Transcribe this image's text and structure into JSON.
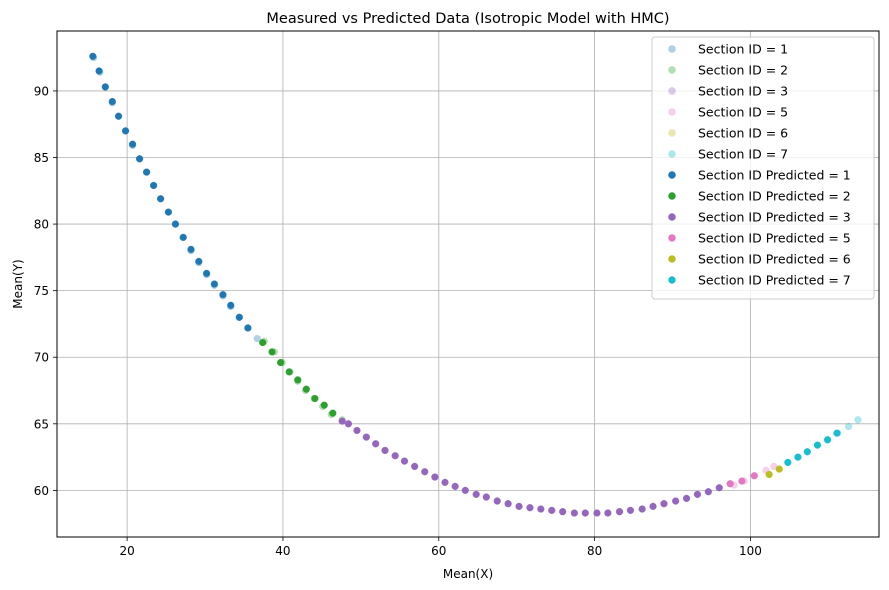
{
  "chart_data": {
    "type": "scatter",
    "title": "Measured vs Predicted Data (Isotropic Model with HMC)",
    "xlabel": "Mean(X)",
    "ylabel": "Mean(Y)",
    "xlim": [
      11,
      116.5
    ],
    "ylim": [
      56.5,
      94.5
    ],
    "xticks": [
      20,
      40,
      60,
      80,
      100
    ],
    "yticks": [
      60,
      65,
      70,
      75,
      80,
      85,
      90
    ],
    "grid": true,
    "legend_position": "top-right",
    "series": [
      {
        "name": "Section ID = 1",
        "color": "#1f77b4",
        "alpha": 0.35,
        "points": [
          [
            15.7,
            92.5
          ],
          [
            16.5,
            91.4
          ],
          [
            17.2,
            90.3
          ],
          [
            18.1,
            89.1
          ],
          [
            18.9,
            88.1
          ],
          [
            19.8,
            87.0
          ],
          [
            20.7,
            85.9
          ],
          [
            21.6,
            84.9
          ],
          [
            22.5,
            83.9
          ],
          [
            23.4,
            82.9
          ],
          [
            24.3,
            81.9
          ],
          [
            25.3,
            80.9
          ],
          [
            26.2,
            80.0
          ],
          [
            27.2,
            79.0
          ],
          [
            28.2,
            78.0
          ],
          [
            29.2,
            77.1
          ],
          [
            30.2,
            76.2
          ],
          [
            31.2,
            75.4
          ],
          [
            32.3,
            74.6
          ],
          [
            33.3,
            73.8
          ],
          [
            34.4,
            73.0
          ],
          [
            35.5,
            72.2
          ],
          [
            36.7,
            71.4
          ]
        ]
      },
      {
        "name": "Section ID = 2",
        "color": "#2ca02c",
        "alpha": 0.35,
        "points": [
          [
            37.6,
            71.2
          ],
          [
            38.9,
            70.4
          ],
          [
            39.9,
            69.6
          ],
          [
            40.9,
            68.9
          ],
          [
            41.9,
            68.2
          ],
          [
            42.9,
            67.5
          ],
          [
            44.0,
            66.9
          ],
          [
            45.1,
            66.3
          ],
          [
            46.2,
            65.7
          ],
          [
            47.6,
            65.3
          ]
        ]
      },
      {
        "name": "Section ID = 3",
        "color": "#9467bd",
        "alpha": 0.35,
        "points": [
          [
            48.4,
            65.0
          ],
          [
            49.5,
            64.5
          ],
          [
            50.7,
            64.0
          ],
          [
            51.9,
            63.5
          ],
          [
            53.1,
            63.0
          ],
          [
            54.4,
            62.6
          ],
          [
            55.6,
            62.2
          ],
          [
            56.9,
            61.8
          ],
          [
            58.2,
            61.4
          ],
          [
            59.5,
            61.0
          ],
          [
            60.8,
            60.6
          ],
          [
            62.1,
            60.3
          ],
          [
            63.4,
            60.0
          ],
          [
            64.8,
            59.7
          ],
          [
            66.1,
            59.5
          ],
          [
            67.5,
            59.2
          ],
          [
            68.9,
            59.0
          ],
          [
            70.3,
            58.8
          ],
          [
            71.7,
            58.7
          ],
          [
            73.1,
            58.6
          ],
          [
            74.5,
            58.5
          ],
          [
            75.9,
            58.4
          ],
          [
            77.4,
            58.3
          ],
          [
            78.8,
            58.3
          ],
          [
            80.3,
            58.3
          ],
          [
            81.7,
            58.3
          ],
          [
            83.2,
            58.4
          ],
          [
            84.6,
            58.5
          ],
          [
            86.1,
            58.6
          ],
          [
            87.5,
            58.8
          ],
          [
            88.9,
            59.0
          ],
          [
            90.4,
            59.2
          ],
          [
            91.8,
            59.4
          ],
          [
            93.2,
            59.7
          ],
          [
            94.6,
            59.9
          ],
          [
            96.0,
            60.2
          ],
          [
            97.4,
            60.5
          ]
        ]
      },
      {
        "name": "Section ID = 5",
        "color": "#e377c2",
        "alpha": 0.35,
        "points": [
          [
            97.9,
            60.4
          ],
          [
            99.2,
            60.7
          ],
          [
            100.5,
            61.1
          ],
          [
            102.0,
            61.5
          ],
          [
            103.0,
            61.8
          ]
        ]
      },
      {
        "name": "Section ID = 6",
        "color": "#bcbd22",
        "alpha": 0.35,
        "points": [
          [
            102.4,
            61.2
          ],
          [
            103.7,
            61.6
          ]
        ]
      },
      {
        "name": "Section ID = 7",
        "color": "#17becf",
        "alpha": 0.35,
        "points": [
          [
            104.8,
            62.1
          ],
          [
            106.1,
            62.5
          ],
          [
            107.3,
            62.9
          ],
          [
            108.6,
            63.4
          ],
          [
            109.9,
            63.8
          ],
          [
            111.2,
            64.3
          ],
          [
            112.6,
            64.8
          ],
          [
            113.8,
            65.3
          ]
        ]
      },
      {
        "name": "Section ID Predicted = 1",
        "color": "#1f77b4",
        "alpha": 1,
        "points": [
          [
            15.6,
            92.6
          ],
          [
            16.4,
            91.5
          ],
          [
            17.2,
            90.3
          ],
          [
            18.1,
            89.2
          ],
          [
            18.9,
            88.1
          ],
          [
            19.8,
            87.0
          ],
          [
            20.7,
            86.0
          ],
          [
            21.6,
            84.9
          ],
          [
            22.5,
            83.9
          ],
          [
            23.4,
            82.9
          ],
          [
            24.3,
            81.9
          ],
          [
            25.3,
            80.9
          ],
          [
            26.2,
            80.0
          ],
          [
            27.2,
            79.0
          ],
          [
            28.2,
            78.1
          ],
          [
            29.2,
            77.2
          ],
          [
            30.2,
            76.3
          ],
          [
            31.2,
            75.5
          ],
          [
            32.3,
            74.7
          ],
          [
            33.3,
            73.9
          ],
          [
            34.4,
            73.0
          ],
          [
            35.5,
            72.2
          ]
        ]
      },
      {
        "name": "Section ID Predicted = 2",
        "color": "#2ca02c",
        "alpha": 1,
        "points": [
          [
            37.4,
            71.1
          ],
          [
            38.6,
            70.4
          ],
          [
            39.7,
            69.6
          ],
          [
            40.8,
            68.9
          ],
          [
            41.9,
            68.3
          ],
          [
            43.0,
            67.6
          ],
          [
            44.1,
            66.9
          ],
          [
            45.3,
            66.4
          ],
          [
            46.4,
            65.8
          ]
        ]
      },
      {
        "name": "Section ID Predicted = 3",
        "color": "#9467bd",
        "alpha": 1,
        "points": [
          [
            47.6,
            65.2
          ],
          [
            48.4,
            65.0
          ],
          [
            49.5,
            64.5
          ],
          [
            50.7,
            64.0
          ],
          [
            51.9,
            63.5
          ],
          [
            53.1,
            63.0
          ],
          [
            54.4,
            62.6
          ],
          [
            55.6,
            62.2
          ],
          [
            56.9,
            61.8
          ],
          [
            58.2,
            61.4
          ],
          [
            59.5,
            61.0
          ],
          [
            60.8,
            60.6
          ],
          [
            62.1,
            60.3
          ],
          [
            63.4,
            60.0
          ],
          [
            64.8,
            59.7
          ],
          [
            66.1,
            59.5
          ],
          [
            67.5,
            59.2
          ],
          [
            68.9,
            59.0
          ],
          [
            70.3,
            58.8
          ],
          [
            71.7,
            58.7
          ],
          [
            73.1,
            58.6
          ],
          [
            74.5,
            58.5
          ],
          [
            75.9,
            58.4
          ],
          [
            77.4,
            58.3
          ],
          [
            78.8,
            58.3
          ],
          [
            80.3,
            58.3
          ],
          [
            81.7,
            58.3
          ],
          [
            83.2,
            58.4
          ],
          [
            84.6,
            58.5
          ],
          [
            86.1,
            58.6
          ],
          [
            87.5,
            58.8
          ],
          [
            88.9,
            59.0
          ],
          [
            90.4,
            59.2
          ],
          [
            91.8,
            59.4
          ],
          [
            93.2,
            59.7
          ],
          [
            94.6,
            59.9
          ],
          [
            96.0,
            60.2
          ]
        ]
      },
      {
        "name": "Section ID Predicted = 5",
        "color": "#e377c2",
        "alpha": 1,
        "points": [
          [
            97.4,
            60.5
          ],
          [
            98.9,
            60.7
          ],
          [
            100.5,
            61.1
          ]
        ]
      },
      {
        "name": "Section ID Predicted = 6",
        "color": "#bcbd22",
        "alpha": 1,
        "points": [
          [
            102.4,
            61.2
          ],
          [
            103.7,
            61.6
          ]
        ]
      },
      {
        "name": "Section ID Predicted = 7",
        "color": "#17becf",
        "alpha": 1,
        "points": [
          [
            104.8,
            62.1
          ],
          [
            106.1,
            62.5
          ],
          [
            107.3,
            62.9
          ],
          [
            108.6,
            63.4
          ],
          [
            109.9,
            63.8
          ],
          [
            111.1,
            64.3
          ]
        ]
      }
    ]
  }
}
